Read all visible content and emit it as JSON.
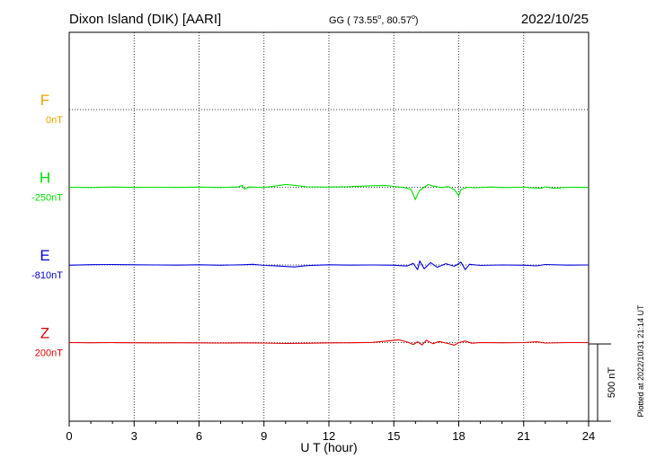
{
  "header": {
    "station": "Dixon Island (DIK)  [AARI]",
    "coords": "GG ( 73.55",
    "coords_lat_deg": "o",
    "coords_mid": ",  80.57",
    "coords_lon_deg": "o",
    "coords_end": ")",
    "date": "2022/10/25"
  },
  "footer": {
    "plotted": "Plotted at 2022/10/31 21:14 UT"
  },
  "chart_data": {
    "type": "line",
    "title": "Dixon Island (DIK)  [AARI]",
    "xlabel": "U T (hour)",
    "ylabel": "",
    "xlim": [
      0,
      24
    ],
    "xticks": [
      "0",
      "3",
      "6",
      "9",
      "12",
      "15",
      "18",
      "21",
      "24"
    ],
    "grid": true,
    "scale_bar": {
      "label": "500 nT",
      "value_nT": 500
    },
    "panel_spacing_nT": 500,
    "series": [
      {
        "name": "F",
        "baseline_label": "0nT",
        "baseline_nT": 0,
        "color": "#f0a000",
        "x": [],
        "y": []
      },
      {
        "name": "H",
        "baseline_label": "-250nT",
        "baseline_nT": -250,
        "color": "#00e000",
        "x": [
          0,
          1,
          2,
          3,
          4,
          5,
          6,
          7,
          7.8,
          8,
          8.1,
          8.3,
          9,
          9.6,
          10,
          10.4,
          11,
          12,
          13,
          14,
          14.6,
          15,
          15.5,
          15.8,
          16,
          16.1,
          16.2,
          16.4,
          16.6,
          16.8,
          17.2,
          17.5,
          17.8,
          18,
          18.1,
          18.4,
          18.8,
          19.5,
          20,
          21,
          21.8,
          22,
          22.4,
          23,
          24
        ],
        "y": [
          -250,
          -252,
          -249,
          -251,
          -250,
          -251,
          -249,
          -252,
          -248,
          -238,
          -262,
          -248,
          -252,
          -240,
          -232,
          -237,
          -247,
          -249,
          -246,
          -240,
          -238,
          -244,
          -252,
          -264,
          -330,
          -295,
          -270,
          -250,
          -232,
          -242,
          -252,
          -246,
          -265,
          -305,
          -265,
          -250,
          -253,
          -248,
          -252,
          -250,
          -257,
          -247,
          -257,
          -250,
          -251
        ]
      },
      {
        "name": "E",
        "baseline_label": "-810nT",
        "baseline_nT": -810,
        "color": "#0000dd",
        "x": [
          0,
          1,
          2,
          3,
          4,
          5,
          6,
          7,
          8,
          8.5,
          9,
          9.5,
          10,
          10.4,
          11,
          12,
          13,
          14,
          15,
          15.6,
          15.9,
          16.1,
          16.2,
          16.4,
          16.7,
          17,
          17.4,
          17.8,
          18.1,
          18.3,
          18.5,
          19,
          20,
          21,
          21.6,
          22,
          23,
          24
        ],
        "y": [
          -812,
          -808,
          -807,
          -809,
          -810,
          -811,
          -809,
          -812,
          -809,
          -806,
          -813,
          -815,
          -820,
          -823,
          -814,
          -809,
          -811,
          -810,
          -812,
          -817,
          -800,
          -840,
          -784,
          -835,
          -795,
          -825,
          -802,
          -818,
          -792,
          -840,
          -806,
          -813,
          -810,
          -812,
          -816,
          -807,
          -811,
          -810
        ]
      },
      {
        "name": "Z",
        "baseline_label": "200nT",
        "baseline_nT": 200,
        "color": "#e00000",
        "x": [
          0,
          1,
          2,
          3,
          4,
          5,
          6,
          7,
          8,
          9,
          10,
          11,
          12,
          13,
          14,
          14.8,
          15.2,
          15.6,
          15.9,
          16.1,
          16.3,
          16.5,
          16.8,
          17.1,
          17.5,
          17.8,
          18,
          18.3,
          18.6,
          19,
          20,
          21,
          21.6,
          22,
          23,
          24
        ],
        "y": [
          200,
          199,
          200,
          199,
          198,
          199,
          198,
          197,
          198,
          197,
          194,
          196,
          198,
          199,
          201,
          212,
          218,
          205,
          188,
          205,
          185,
          215,
          193,
          207,
          194,
          183,
          200,
          210,
          196,
          200,
          199,
          200,
          205,
          197,
          200,
          200
        ]
      }
    ]
  }
}
